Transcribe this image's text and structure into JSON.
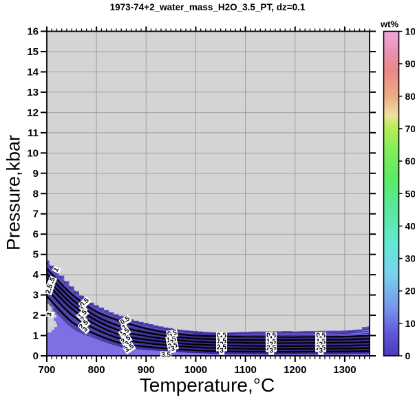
{
  "chart_data": {
    "type": "filled-contour",
    "title": "1973-74+2_water_mass_H2O_3.5_PT, dz=0.1",
    "xlabel": "Temperature,°C",
    "ylabel": "Pressure,kbar",
    "xlim": [
      700,
      1350
    ],
    "ylim": [
      0,
      16
    ],
    "x_ticks": [
      700,
      800,
      900,
      1000,
      1100,
      1200,
      1300
    ],
    "x_minor_step": 10,
    "y_ticks": [
      0,
      1,
      2,
      3,
      4,
      5,
      6,
      7,
      8,
      9,
      10,
      11,
      12,
      13,
      14,
      15,
      16
    ],
    "grid": true,
    "colorbar": {
      "label": "wt%",
      "min": 0,
      "max": 100,
      "ticks": [
        0,
        10,
        20,
        30,
        40,
        50,
        60,
        70,
        80,
        90,
        100
      ],
      "stops": [
        {
          "value": 0,
          "color": "#4c38be"
        },
        {
          "value": 7,
          "color": "#6058d8"
        },
        {
          "value": 15,
          "color": "#7896ee"
        },
        {
          "value": 25,
          "color": "#78d2ee"
        },
        {
          "value": 35,
          "color": "#64e8d2"
        },
        {
          "value": 45,
          "color": "#58e89e"
        },
        {
          "value": 55,
          "color": "#5cea64"
        },
        {
          "value": 65,
          "color": "#8aee58"
        },
        {
          "value": 71,
          "color": "#c0ec5c"
        },
        {
          "value": 74,
          "color": "#f0e0a0"
        },
        {
          "value": 80,
          "color": "#ecac84"
        },
        {
          "value": 88,
          "color": "#ea8888"
        },
        {
          "value": 93,
          "color": "#ec8fb0"
        },
        {
          "value": 100,
          "color": "#f2a6dc"
        }
      ]
    },
    "band_top": {
      "x_start": 700,
      "x_step": 10,
      "pressures": [
        4.7,
        4.45,
        4.2,
        3.95,
        3.68,
        3.42,
        3.18,
        2.96,
        2.78,
        2.62,
        2.5,
        2.38,
        2.26,
        2.15,
        2.05,
        1.96,
        1.88,
        1.8,
        1.73,
        1.67,
        1.62,
        1.56,
        1.5,
        1.45,
        1.4,
        1.36,
        1.32,
        1.29,
        1.26,
        1.24,
        1.22,
        1.2,
        1.18,
        1.17,
        1.16,
        1.15,
        1.15,
        1.16,
        1.17,
        1.18,
        1.18,
        1.19,
        1.2,
        1.2,
        1.2,
        1.2,
        1.21,
        1.21,
        1.22,
        1.22,
        1.2,
        1.21,
        1.22,
        1.22,
        1.22,
        1.23,
        1.23,
        1.24,
        1.24,
        1.24,
        1.25,
        1.26,
        1.28,
        1.3,
        1.42,
        1.45
      ]
    },
    "contour_x": [
      700,
      750,
      800,
      850,
      900,
      950,
      1000,
      1050,
      1100,
      1150,
      1200,
      1250,
      1300,
      1350
    ],
    "contours": [
      {
        "level": 0.5,
        "p": [
          4.3,
          3.05,
          2.18,
          1.7,
          1.35,
          1.12,
          1.0,
          0.96,
          0.94,
          0.93,
          0.93,
          0.94,
          0.95,
          1.0
        ]
      },
      {
        "level": 1.0,
        "p": [
          4.05,
          2.8,
          1.95,
          1.44,
          1.15,
          0.96,
          0.85,
          0.81,
          0.78,
          0.78,
          0.78,
          0.79,
          0.8,
          0.84
        ]
      },
      {
        "level": 1.5,
        "p": [
          3.82,
          2.56,
          1.74,
          1.22,
          0.97,
          0.81,
          0.7,
          0.66,
          0.64,
          0.63,
          0.63,
          0.64,
          0.65,
          0.68
        ]
      },
      {
        "level": 2.0,
        "p": [
          3.58,
          2.32,
          1.53,
          1.02,
          0.8,
          0.66,
          0.56,
          0.52,
          0.49,
          0.48,
          0.48,
          0.49,
          0.5,
          0.53
        ]
      },
      {
        "level": 2.5,
        "p": [
          3.3,
          2.02,
          1.3,
          0.83,
          0.63,
          0.51,
          0.42,
          0.38,
          0.35,
          0.34,
          0.34,
          0.35,
          0.36,
          0.38
        ]
      },
      {
        "level": 3.0,
        "p": [
          2.95,
          1.68,
          1.05,
          0.62,
          0.45,
          0.35,
          0.27,
          0.23,
          0.21,
          0.2,
          0.2,
          0.21,
          0.22,
          0.24
        ]
      }
    ],
    "minor_contour_step": 0.1,
    "contour_labels": [
      {
        "t": 720,
        "p": 4.25,
        "r": -62,
        "v": "1"
      },
      {
        "t": 710,
        "p": 3.62,
        "r": -66,
        "v": "1.5"
      },
      {
        "t": 705,
        "p": 3.28,
        "r": -72,
        "v": "2.5"
      },
      {
        "t": 706,
        "p": 2.05,
        "r": -78,
        "v": "3"
      },
      {
        "t": 776,
        "p": 2.6,
        "r": -44,
        "v": "0.5"
      },
      {
        "t": 773,
        "p": 2.3,
        "r": -44,
        "v": "1"
      },
      {
        "t": 772,
        "p": 2.04,
        "r": -44,
        "v": "1.5"
      },
      {
        "t": 773,
        "p": 1.8,
        "r": -44,
        "v": "2"
      },
      {
        "t": 775,
        "p": 1.54,
        "r": -44,
        "v": "2.5"
      },
      {
        "t": 777,
        "p": 1.28,
        "r": -44,
        "v": "3"
      },
      {
        "t": 858,
        "p": 1.74,
        "r": -33,
        "v": "0.5"
      },
      {
        "t": 856,
        "p": 1.4,
        "r": -33,
        "v": "1"
      },
      {
        "t": 856,
        "p": 1.17,
        "r": -33,
        "v": "1.5"
      },
      {
        "t": 858,
        "p": 0.97,
        "r": -33,
        "v": "2"
      },
      {
        "t": 860,
        "p": 0.78,
        "r": -33,
        "v": "2.5"
      },
      {
        "t": 862,
        "p": 0.57,
        "r": -33,
        "v": "3"
      },
      {
        "t": 866,
        "p": 0.36,
        "r": -33,
        "v": "3.5"
      },
      {
        "t": 952,
        "p": 1.1,
        "r": -10,
        "v": "0.5"
      },
      {
        "t": 951,
        "p": 0.94,
        "r": -10,
        "v": "1"
      },
      {
        "t": 951,
        "p": 0.79,
        "r": -10,
        "v": "1.5"
      },
      {
        "t": 952,
        "p": 0.63,
        "r": -10,
        "v": "2"
      },
      {
        "t": 953,
        "p": 0.48,
        "r": -10,
        "v": "2.5"
      },
      {
        "t": 954,
        "p": 0.33,
        "r": -10,
        "v": "3"
      },
      {
        "t": 940,
        "p": 0.05,
        "r": 0,
        "v": "3.5"
      },
      {
        "t": 1052,
        "p": 1.0,
        "r": 0,
        "v": "0.5"
      },
      {
        "t": 1052,
        "p": 0.85,
        "r": 0,
        "v": "1"
      },
      {
        "t": 1052,
        "p": 0.7,
        "r": 0,
        "v": "1.5"
      },
      {
        "t": 1052,
        "p": 0.55,
        "r": 0,
        "v": "2"
      },
      {
        "t": 1052,
        "p": 0.4,
        "r": 0,
        "v": "2.5"
      },
      {
        "t": 1052,
        "p": 0.25,
        "r": 0,
        "v": "3"
      },
      {
        "t": 1152,
        "p": 0.98,
        "r": 0,
        "v": "0.5"
      },
      {
        "t": 1152,
        "p": 0.83,
        "r": 0,
        "v": "1"
      },
      {
        "t": 1152,
        "p": 0.68,
        "r": 0,
        "v": "1.5"
      },
      {
        "t": 1152,
        "p": 0.53,
        "r": 0,
        "v": "2"
      },
      {
        "t": 1152,
        "p": 0.38,
        "r": 0,
        "v": "2.5"
      },
      {
        "t": 1152,
        "p": 0.23,
        "r": 0,
        "v": "3"
      },
      {
        "t": 1252,
        "p": 0.98,
        "r": 0,
        "v": "0.5"
      },
      {
        "t": 1252,
        "p": 0.83,
        "r": 0,
        "v": "1"
      },
      {
        "t": 1252,
        "p": 0.68,
        "r": 0,
        "v": "1.5"
      },
      {
        "t": 1252,
        "p": 0.53,
        "r": 0,
        "v": "2"
      },
      {
        "t": 1252,
        "p": 0.38,
        "r": 0,
        "v": "2.5"
      },
      {
        "t": 1252,
        "p": 0.23,
        "r": 0,
        "v": "3"
      }
    ],
    "left_edge_gaps": [
      {
        "p0": 2.92,
        "p1": 2.78,
        "w": 4
      },
      {
        "p0": 2.78,
        "p1": 2.62,
        "w": 7
      },
      {
        "p0": 2.62,
        "p1": 2.48,
        "w": 5
      },
      {
        "p0": 2.48,
        "p1": 2.32,
        "w": 9
      },
      {
        "p0": 2.32,
        "p1": 2.18,
        "w": 6
      },
      {
        "p0": 2.18,
        "p1": 2.02,
        "w": 11
      },
      {
        "p0": 2.02,
        "p1": 1.88,
        "w": 13
      },
      {
        "p0": 1.88,
        "p1": 1.72,
        "w": 9
      },
      {
        "p0": 1.72,
        "p1": 1.58,
        "w": 12
      },
      {
        "p0": 1.58,
        "p1": 1.42,
        "w": 14
      },
      {
        "p0": 1.42,
        "p1": 1.28,
        "w": 10
      },
      {
        "p0": 1.28,
        "p1": 1.16,
        "w": 6
      }
    ],
    "colors": {
      "plot_bg": "#d4d4d4",
      "grid": "#9f9f9f",
      "fill": "#7c70e2",
      "fill_dark_edge": "#5a4bc8",
      "contour_thick": "#000000",
      "contour_thin": "#2c2080",
      "axis": "#000000"
    }
  }
}
